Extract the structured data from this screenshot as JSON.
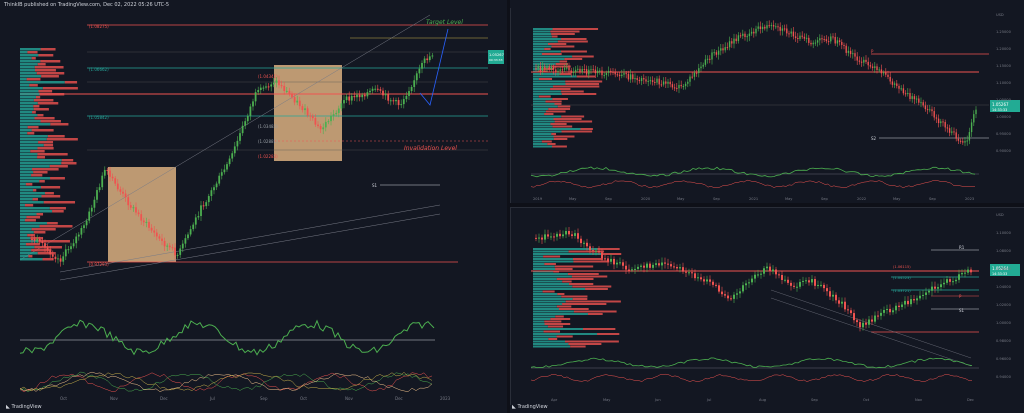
{
  "header": {
    "publisher_line": "ThinkIB published on TradingView.com, Dec 02, 2022 05:26 UTC-5"
  },
  "footer": {
    "logo_text": "TradingView"
  },
  "colors": {
    "background": "#131722",
    "bull": "#26a69a",
    "bull_bright": "#4caf50",
    "bear": "#ef5350",
    "box_fill": "#f7c68e",
    "target_text": "#4caf50",
    "invalidation_text": "#ef5350",
    "price_badge": "#22ab94"
  },
  "left_chart": {
    "target_label": "Target Level",
    "invalidation_label": "Invalidation Level",
    "price_badge": "1.05267",
    "price_badge_sub": "00:33:33",
    "level_labels": {
      "top": "(1.08275)",
      "l1": "(1.06662)",
      "l2": "(1.05842)",
      "box_a": "(1.04341)",
      "box_b": "(1.03483)",
      "box_c": "(1.02881)",
      "box_d": "(1.02283)",
      "low": "(0.97293)",
      "s1": "S1"
    },
    "x_ticks": [
      "Oct",
      "Nov",
      "Dec",
      "Jul",
      "Sep",
      "Oct",
      "Nov",
      "Dec",
      "2023"
    ]
  },
  "top_right_chart": {
    "price_badge": "1.05267",
    "price_badge_sub": "14:33:33",
    "right_axis": [
      "USD",
      "1.25000",
      "1.20000",
      "1.15000",
      "1.10000",
      "1.05000",
      "1.00000",
      "0.95000",
      "0.90000"
    ],
    "x_ticks": [
      "2019",
      "May",
      "Sep",
      "2020",
      "May",
      "Sep",
      "2021",
      "May",
      "Sep",
      "2022",
      "May",
      "Sep",
      "2023"
    ],
    "labels": {
      "p": "P",
      "s2": "S2"
    }
  },
  "bottom_right_chart": {
    "price_badge": "1.05264",
    "price_badge_sub": "14:33:33",
    "right_axis": [
      "USD",
      "1.10000",
      "1.08000",
      "1.06000",
      "1.04000",
      "1.02000",
      "1.00000",
      "0.98000",
      "0.96000",
      "0.94000"
    ],
    "x_ticks": [
      "Apr",
      "May",
      "Jun",
      "Jul",
      "Aug",
      "Sep",
      "Oct",
      "Nov",
      "Dec"
    ],
    "level_labels": {
      "r1": "R1",
      "l1": "(1.06115)",
      "l2": "(1.04523)",
      "l3": "(1.03721)",
      "p": "P",
      "s1": "S1"
    }
  }
}
